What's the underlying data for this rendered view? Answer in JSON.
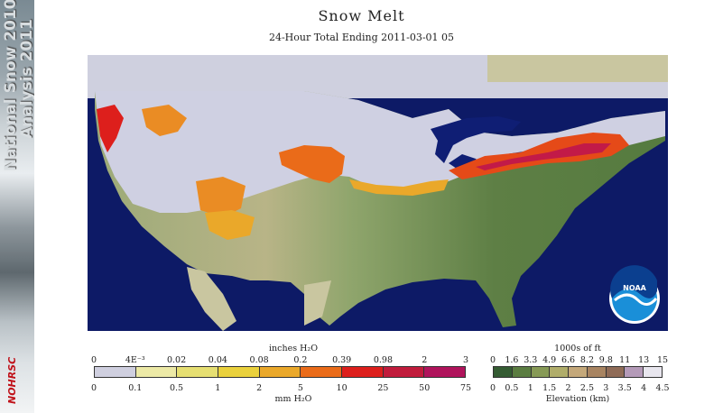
{
  "sidebar": {
    "line1": "National Snow 2010-",
    "line2": "Analysis 2011",
    "logo": "NOHRSC"
  },
  "header": {
    "title": "Snow Melt",
    "subtitle": "24-Hour Total Ending 2011-03-01 05"
  },
  "noaa_logo": "NOAA",
  "legend_left": {
    "top_title": "inches H₂O",
    "bottom_title": "mm H₂O",
    "top_ticks": [
      "0",
      "4E⁻³",
      "0.02",
      "0.04",
      "0.08",
      "0.2",
      "0.39",
      "0.98",
      "2",
      "3"
    ],
    "bottom_ticks": [
      "0",
      "0.1",
      "0.5",
      "1",
      "2",
      "5",
      "10",
      "25",
      "50",
      "75"
    ],
    "colors": [
      "#cfcfdf",
      "#ece9a6",
      "#e6df72",
      "#ead13c",
      "#eaa82a",
      "#ea6b19",
      "#dd1f1c",
      "#c11c3c",
      "#b0145c"
    ]
  },
  "legend_right": {
    "top_title": "1000s of ft",
    "bottom_title": "Elevation (km)",
    "top_ticks": [
      "0",
      "1.6",
      "3.3",
      "4.9",
      "6.6",
      "8.2",
      "9.8",
      "11",
      "13",
      "15"
    ],
    "bottom_ticks": [
      "0",
      "0.5",
      "1",
      "1.5",
      "2",
      "2.5",
      "3",
      "3.5",
      "4",
      "4.5"
    ],
    "colors": [
      "#355c33",
      "#5b7d41",
      "#879a56",
      "#b0ad6a",
      "#c4a87a",
      "#a88461",
      "#8f6b57",
      "#b49ab8",
      "#e8e6ee"
    ]
  }
}
